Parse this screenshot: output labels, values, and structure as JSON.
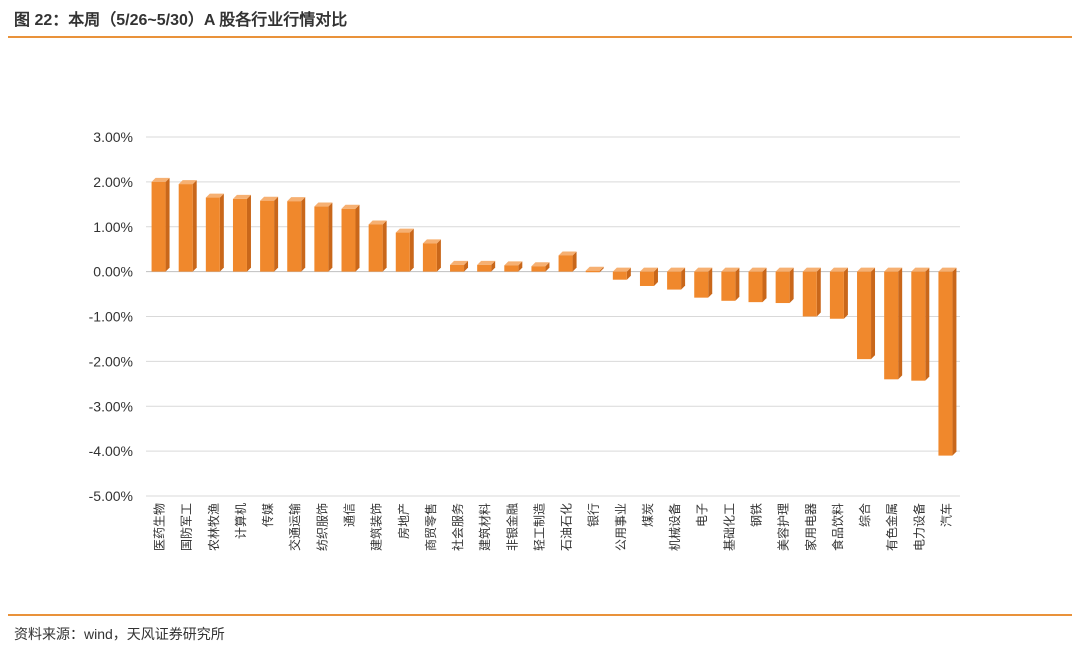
{
  "header": {
    "title": "图 22：本周（5/26~5/30）A 股各行业行情对比"
  },
  "footer": {
    "source": "资料来源：wind，天风证券研究所"
  },
  "colors": {
    "accent": "#e9923a",
    "bar_front": "#f0882c",
    "bar_side": "#c9671a",
    "bar_top": "#f6b072",
    "grid": "#d9d9d9"
  },
  "chart_data": {
    "type": "bar",
    "title": "",
    "xlabel": "",
    "ylabel": "",
    "ylim": [
      -0.05,
      0.03
    ],
    "yticks": [
      0.03,
      0.02,
      0.01,
      0,
      -0.01,
      -0.02,
      -0.03,
      -0.04,
      -0.05
    ],
    "ytick_labels": [
      "3.00%",
      "2.00%",
      "1.00%",
      "0.00%",
      "-1.00%",
      "-2.00%",
      "-3.00%",
      "-4.00%",
      "-5.00%"
    ],
    "grid": true,
    "legend": "none",
    "categories": [
      "医药生物",
      "国防军工",
      "农林牧渔",
      "计算机",
      "传媒",
      "交通运输",
      "纺织服饰",
      "通信",
      "建筑装饰",
      "房地产",
      "商贸零售",
      "社会服务",
      "建筑材料",
      "非银金融",
      "轻工制造",
      "石油石化",
      "银行",
      "公用事业",
      "煤炭",
      "机械设备",
      "电子",
      "基础化工",
      "钢铁",
      "美容护理",
      "家用电器",
      "食品饮料",
      "综合",
      "有色金属",
      "电力设备",
      "汽车"
    ],
    "values": [
      0.02,
      0.0195,
      0.0165,
      0.0162,
      0.0158,
      0.0157,
      0.0145,
      0.014,
      0.0105,
      0.0087,
      0.0063,
      0.0015,
      0.0015,
      0.0014,
      0.0012,
      0.0036,
      0.0002,
      -0.0018,
      -0.0032,
      -0.004,
      -0.0058,
      -0.0065,
      -0.0068,
      -0.007,
      -0.01,
      -0.0105,
      -0.0195,
      -0.024,
      -0.0243,
      -0.041
    ]
  }
}
